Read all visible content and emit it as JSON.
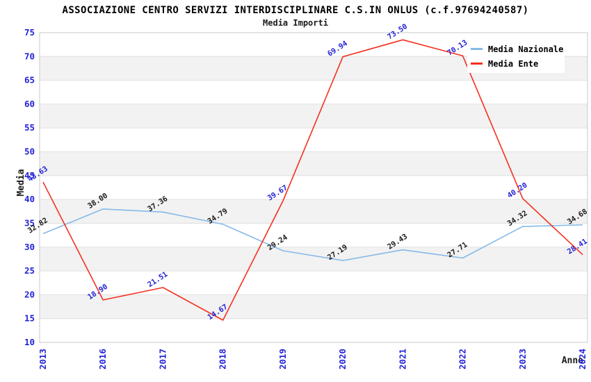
{
  "chart_data": {
    "type": "line",
    "title": "ASSOCIAZIONE CENTRO SERVIZI INTERDISCIPLINARE C.S.IN ONLUS (c.f.97694240587)",
    "subtitle": "Media Importi",
    "xlabel": "Anno",
    "ylabel": "Media",
    "categories": [
      "2013",
      "2016",
      "2017",
      "2018",
      "2019",
      "2020",
      "2021",
      "2022",
      "2023",
      "2024"
    ],
    "ylim": [
      10,
      75
    ],
    "ytick_step": 5,
    "grid": true,
    "background_bands": "alternating white and light-gray horizontal bands every 5 units",
    "legend_position": "top-right",
    "series": [
      {
        "name": "Media Nazionale",
        "color": "#86b9e9",
        "label_color": "#1a1a1a",
        "values": [
          32.82,
          38.0,
          37.36,
          34.79,
          29.24,
          27.19,
          29.43,
          27.71,
          34.32,
          34.68
        ]
      },
      {
        "name": "Media Ente",
        "color": "#f4301f",
        "label_color": "#2323d6",
        "values": [
          43.63,
          18.9,
          21.51,
          14.67,
          39.67,
          69.94,
          73.5,
          70.13,
          40.2,
          28.41
        ]
      }
    ],
    "colors": {
      "tick_label": "#2323d6",
      "band": "#f2f2f2",
      "gridline": "#e0e0e0",
      "plot_border": "#c8c8c8"
    }
  }
}
